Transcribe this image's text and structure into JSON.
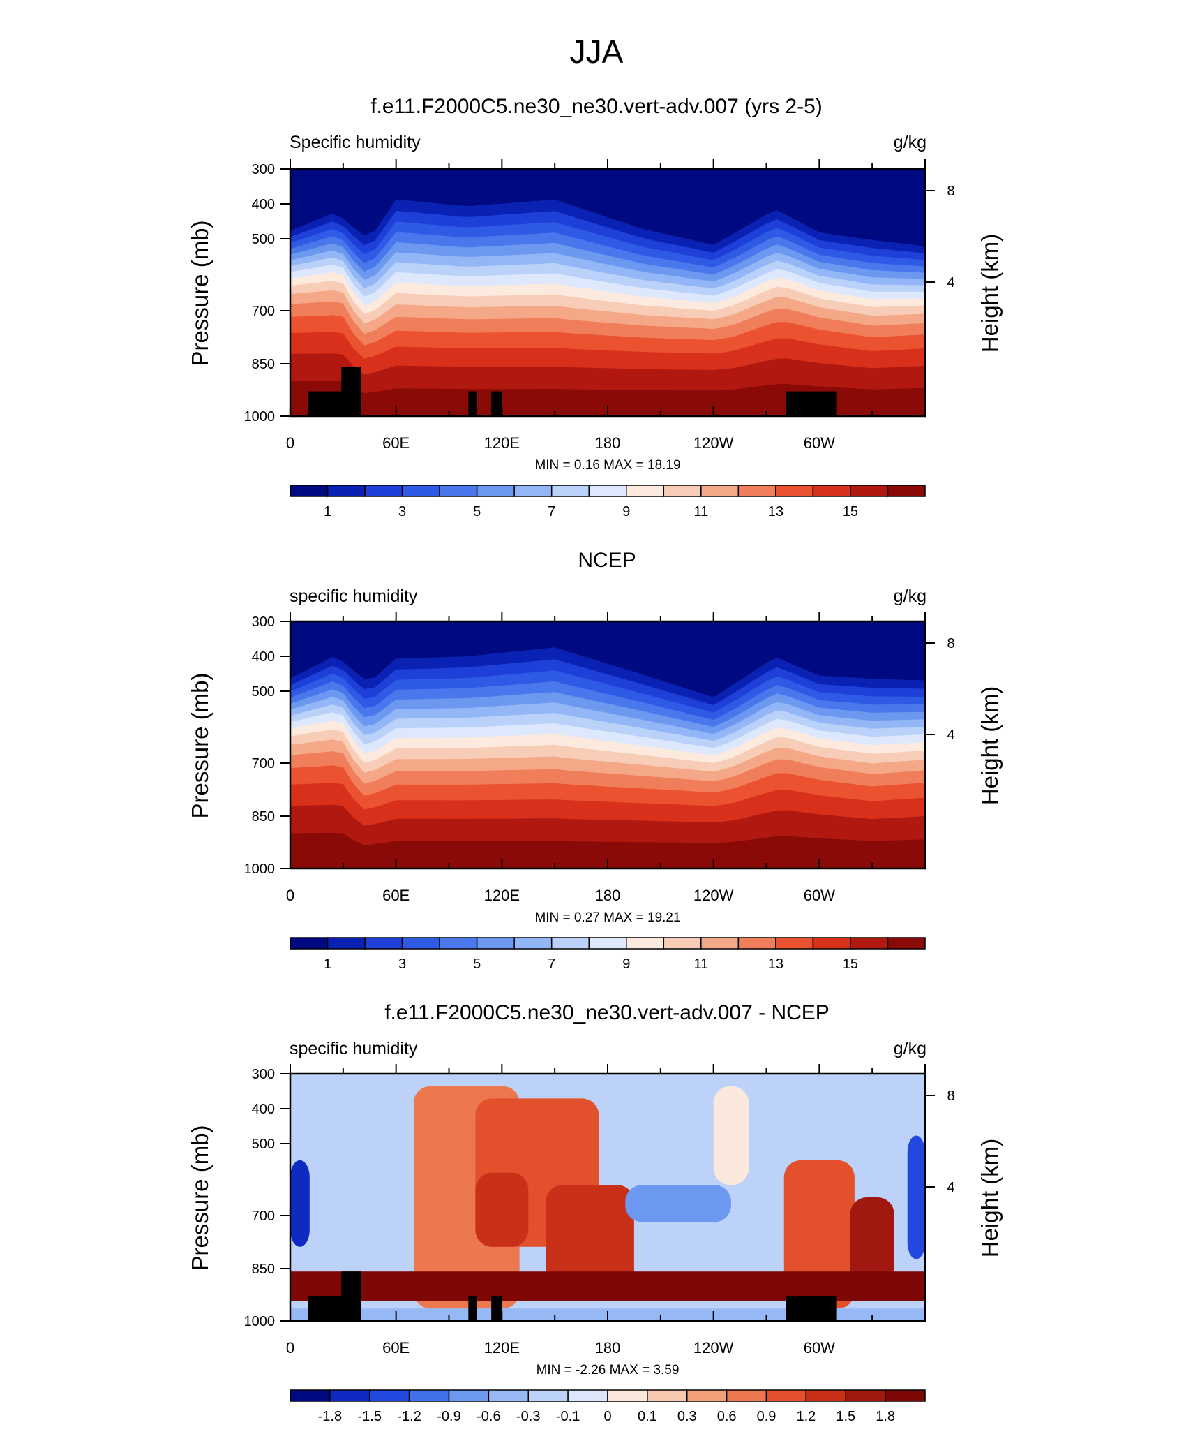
{
  "figure_title": "JJA",
  "chart_data": [
    {
      "type": "heatmap",
      "title": "f.e11.F2000C5.ne30_ne30.vert-adv.007 (yrs 2-5)",
      "left_string": "Specific humidity",
      "right_string": "g/kg",
      "ylabel": "Pressure (mb)",
      "ylabel_right": "Height (km)",
      "x_ticks": [
        "0",
        "60E",
        "120E",
        "180",
        "120W",
        "60W"
      ],
      "y_ticks": [
        "300",
        "400",
        "500",
        "700",
        "850",
        "1000"
      ],
      "height_ticks": [
        "8",
        "4"
      ],
      "stats": "MIN =   0.16  MAX =  18.19",
      "min": 0.16,
      "max": 18.19,
      "colorbar_labels": [
        "1",
        "3",
        "5",
        "7",
        "9",
        "11",
        "13",
        "15"
      ],
      "masked": true
    },
    {
      "type": "heatmap",
      "title": "NCEP",
      "left_string": "specific humidity",
      "right_string": "g/kg",
      "ylabel": "Pressure (mb)",
      "ylabel_right": "Height (km)",
      "x_ticks": [
        "0",
        "60E",
        "120E",
        "180",
        "120W",
        "60W"
      ],
      "y_ticks": [
        "300",
        "400",
        "500",
        "700",
        "850",
        "1000"
      ],
      "height_ticks": [
        "8",
        "4"
      ],
      "stats": "MIN =   0.27  MAX =  19.21",
      "min": 0.27,
      "max": 19.21,
      "colorbar_labels": [
        "1",
        "3",
        "5",
        "7",
        "9",
        "11",
        "13",
        "15"
      ],
      "masked": false
    },
    {
      "type": "heatmap",
      "title": "f.e11.F2000C5.ne30_ne30.vert-adv.007 - NCEP",
      "left_string": "specific humidity",
      "right_string": "g/kg",
      "ylabel": "Pressure (mb)",
      "ylabel_right": "Height (km)",
      "x_ticks": [
        "0",
        "60E",
        "120E",
        "180",
        "120W",
        "60W"
      ],
      "y_ticks": [
        "300",
        "400",
        "500",
        "700",
        "850",
        "1000"
      ],
      "height_ticks": [
        "8",
        "4"
      ],
      "stats": "MIN = -2.26  MAX =   3.59",
      "min": -2.26,
      "max": 3.59,
      "colorbar_labels": [
        "-1.8",
        "-1.5",
        "-1.2",
        "-0.9",
        "-0.6",
        "-0.3",
        "-0.1",
        "0",
        "0.1",
        "0.3",
        "0.6",
        "0.9",
        "1.2",
        "1.5",
        "1.8"
      ],
      "masked": true
    }
  ],
  "colors": {
    "abs": [
      "#000A80",
      "#0A22B4",
      "#1E40D8",
      "#2E5AE6",
      "#4A78EC",
      "#6C98F0",
      "#92B6F6",
      "#BAD2FA",
      "#DDE8FC",
      "#FCEADF",
      "#F8CDB8",
      "#F4A887",
      "#F17E5A",
      "#EA5230",
      "#D8301A",
      "#B01810",
      "#8A0A08"
    ],
    "diff": [
      "#000A80",
      "#0E2AC0",
      "#2248E0",
      "#4070EA",
      "#6C98F0",
      "#96B8F4",
      "#BCD2F8",
      "#DCE6FA",
      "#FBE8DC",
      "#F8C8AE",
      "#F2A07A",
      "#EC7850",
      "#E2502C",
      "#C83018",
      "#A01810",
      "#7E0806"
    ],
    "mask": "#000000"
  }
}
